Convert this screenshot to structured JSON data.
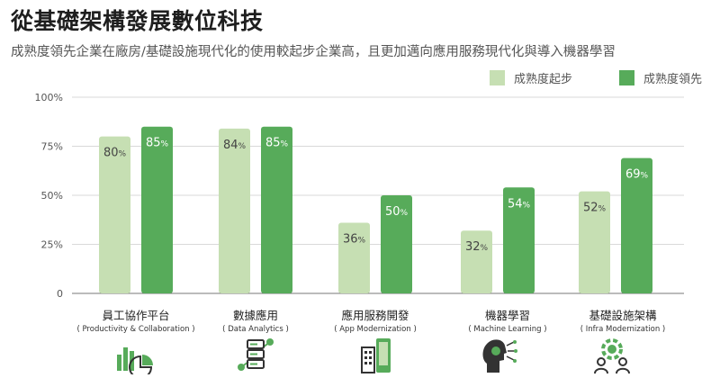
{
  "title": "從基礎架構發展數位科技",
  "subtitle": "成熟度領先企業在廠房/基礎設施現代化的使用較起步企業高，且更加邁向應用服務現代化與導入機器學習",
  "colors": {
    "early": "#c6dfb3",
    "leading": "#57ab5a",
    "grid": "#d9d9d9",
    "axis": "#777777"
  },
  "chart_data": {
    "type": "bar",
    "categories": [
      "員工協作平台",
      "數據應用",
      "應用服務開發",
      "機器學習",
      "基礎設施架構"
    ],
    "category_subtitles": [
      "( Productivity & Collaboration )",
      "( Data Analytics )",
      "( App Modernization )",
      "( Machine Learning )",
      "( Infra Modernization )"
    ],
    "series": [
      {
        "name": "成熟度起步",
        "values": [
          80,
          84,
          36,
          32,
          52
        ]
      },
      {
        "name": "成熟度領先",
        "values": [
          85,
          85,
          50,
          54,
          69
        ]
      }
    ],
    "value_labels": [
      [
        "80",
        "84",
        "36",
        "32",
        "52"
      ],
      [
        "85",
        "85",
        "50",
        "54",
        "69"
      ]
    ],
    "value_suffix": "%",
    "yticks": [
      "0",
      "25%",
      "50%",
      "75%",
      "100%"
    ],
    "ylim": [
      0,
      100
    ],
    "legend_position": "top-right",
    "grid": true
  },
  "icons": [
    "bar-pie-chart-icon",
    "server-data-icon",
    "mobile-app-building-icon",
    "ai-head-circuit-icon",
    "gear-people-icon"
  ]
}
